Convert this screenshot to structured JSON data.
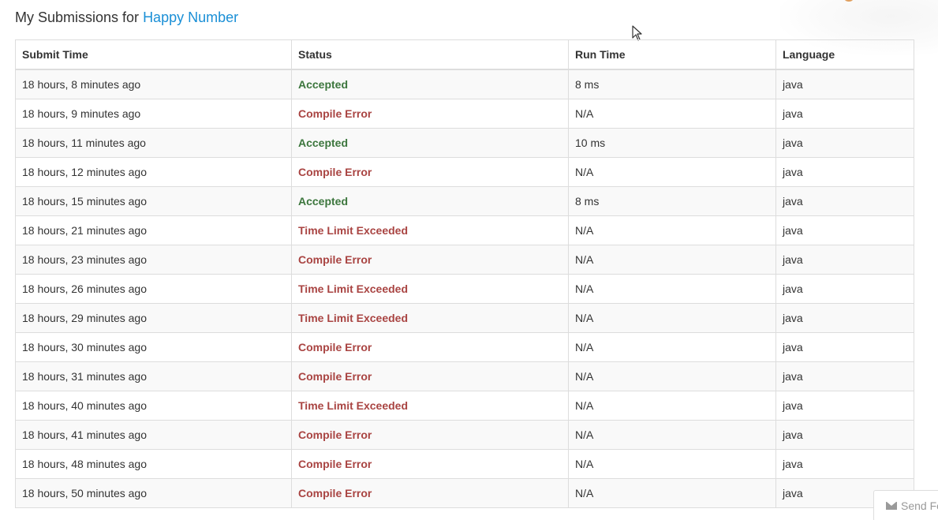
{
  "header": {
    "prefix": "My Submissions for",
    "problem_link": "Happy Number"
  },
  "table": {
    "columns": [
      "Submit Time",
      "Status",
      "Run Time",
      "Language"
    ],
    "rows": [
      {
        "submit_time": "18 hours, 8 minutes ago",
        "status": "Accepted",
        "status_type": "accepted",
        "run_time": "8 ms",
        "language": "java"
      },
      {
        "submit_time": "18 hours, 9 minutes ago",
        "status": "Compile Error",
        "status_type": "error",
        "run_time": "N/A",
        "language": "java"
      },
      {
        "submit_time": "18 hours, 11 minutes ago",
        "status": "Accepted",
        "status_type": "accepted",
        "run_time": "10 ms",
        "language": "java"
      },
      {
        "submit_time": "18 hours, 12 minutes ago",
        "status": "Compile Error",
        "status_type": "error",
        "run_time": "N/A",
        "language": "java"
      },
      {
        "submit_time": "18 hours, 15 minutes ago",
        "status": "Accepted",
        "status_type": "accepted",
        "run_time": "8 ms",
        "language": "java"
      },
      {
        "submit_time": "18 hours, 21 minutes ago",
        "status": "Time Limit Exceeded",
        "status_type": "error",
        "run_time": "N/A",
        "language": "java"
      },
      {
        "submit_time": "18 hours, 23 minutes ago",
        "status": "Compile Error",
        "status_type": "error",
        "run_time": "N/A",
        "language": "java"
      },
      {
        "submit_time": "18 hours, 26 minutes ago",
        "status": "Time Limit Exceeded",
        "status_type": "error",
        "run_time": "N/A",
        "language": "java"
      },
      {
        "submit_time": "18 hours, 29 minutes ago",
        "status": "Time Limit Exceeded",
        "status_type": "error",
        "run_time": "N/A",
        "language": "java"
      },
      {
        "submit_time": "18 hours, 30 minutes ago",
        "status": "Compile Error",
        "status_type": "error",
        "run_time": "N/A",
        "language": "java"
      },
      {
        "submit_time": "18 hours, 31 minutes ago",
        "status": "Compile Error",
        "status_type": "error",
        "run_time": "N/A",
        "language": "java"
      },
      {
        "submit_time": "18 hours, 40 minutes ago",
        "status": "Time Limit Exceeded",
        "status_type": "error",
        "run_time": "N/A",
        "language": "java"
      },
      {
        "submit_time": "18 hours, 41 minutes ago",
        "status": "Compile Error",
        "status_type": "error",
        "run_time": "N/A",
        "language": "java"
      },
      {
        "submit_time": "18 hours, 48 minutes ago",
        "status": "Compile Error",
        "status_type": "error",
        "run_time": "N/A",
        "language": "java"
      },
      {
        "submit_time": "18 hours, 50 minutes ago",
        "status": "Compile Error",
        "status_type": "error",
        "run_time": "N/A",
        "language": "java"
      }
    ]
  },
  "feedback": {
    "label": "Send Fe",
    "icon": "mail-icon"
  },
  "colors": {
    "link": "#1a8fd6",
    "accepted": "#3c763d",
    "error": "#a94442",
    "stripe": "#f9f9f9",
    "border": "#dddddd"
  }
}
